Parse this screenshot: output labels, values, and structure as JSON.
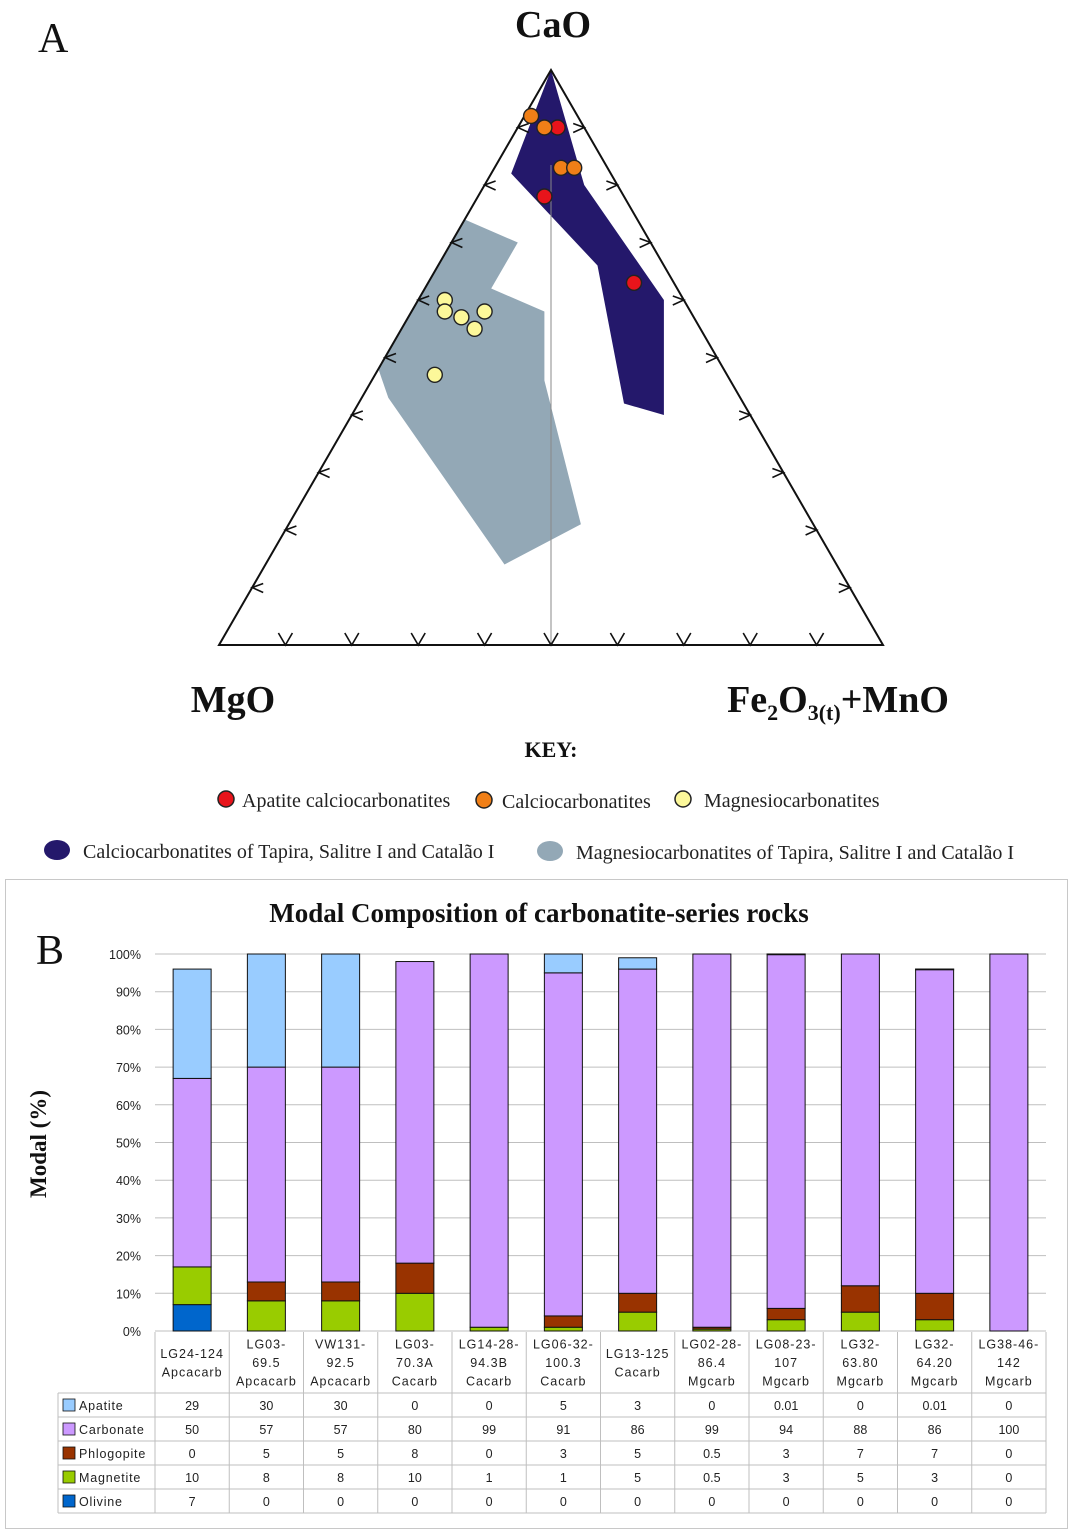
{
  "panel_a": {
    "panel_letter": "A",
    "apex_top": "CaO",
    "apex_left": "MgO",
    "apex_right": {
      "part1": "Fe",
      "sub1": "2",
      "part2": "O",
      "sub2": "3(t)",
      "part3": "+MnO"
    },
    "key_title": "KEY:",
    "legend_points": [
      {
        "label": "Apatite calciocarbonatites",
        "color": "#e8141b"
      },
      {
        "label": "Calciocarbonatites",
        "color": "#f07f17"
      },
      {
        "label": "Magnesiocarbonatites",
        "color": "#fcf89a"
      }
    ],
    "legend_fields": [
      {
        "label": "Calciocarbonatites of Tapira, Salitre I and Catalão I",
        "color": "#24186b"
      },
      {
        "label": "Magnesiocarbonatites of Tapira, Salitre I and Catalão I",
        "color": "#93a8b6"
      }
    ]
  },
  "chart_data": [
    {
      "type": "scatter",
      "subtype": "ternary",
      "axes": [
        "CaO",
        "MgO",
        "Fe2O3(t)+MnO"
      ],
      "grid": "ticks every 10%",
      "series": [
        {
          "name": "Apatite calciocarbonatites",
          "color": "#e8141b",
          "points": [
            {
              "CaO": 90,
              "MgO": 4,
              "Fe2O3(t)+MnO": 6
            },
            {
              "CaO": 78,
              "MgO": 12,
              "Fe2O3(t)+MnO": 10
            },
            {
              "CaO": 63,
              "MgO": 6,
              "Fe2O3(t)+MnO": 31
            }
          ]
        },
        {
          "name": "Calciocarbonatites",
          "color": "#f07f17",
          "points": [
            {
              "CaO": 92,
              "MgO": 7,
              "Fe2O3(t)+MnO": 1
            },
            {
              "CaO": 90,
              "MgO": 6,
              "Fe2O3(t)+MnO": 4
            },
            {
              "CaO": 83,
              "MgO": 7,
              "Fe2O3(t)+MnO": 10
            },
            {
              "CaO": 83,
              "MgO": 5,
              "Fe2O3(t)+MnO": 12
            }
          ]
        },
        {
          "name": "Magnesiocarbonatites",
          "color": "#fcf89a",
          "points": [
            {
              "CaO": 60,
              "MgO": 36,
              "Fe2O3(t)+MnO": 4
            },
            {
              "CaO": 58,
              "MgO": 37,
              "Fe2O3(t)+MnO": 5
            },
            {
              "CaO": 57,
              "MgO": 35,
              "Fe2O3(t)+MnO": 8
            },
            {
              "CaO": 58,
              "MgO": 31,
              "Fe2O3(t)+MnO": 11
            },
            {
              "CaO": 55,
              "MgO": 34,
              "Fe2O3(t)+MnO": 11
            },
            {
              "CaO": 47,
              "MgO": 44,
              "Fe2O3(t)+MnO": 9
            }
          ]
        }
      ],
      "fields": [
        {
          "name": "Calciocarbonatites of Tapira, Salitre I and Catalão I",
          "color": "#24186b",
          "outline": [
            {
              "CaO": 100,
              "MgO": 0,
              "Fe2O3(t)+MnO": 0
            },
            {
              "CaO": 80,
              "MgO": 5,
              "Fe2O3(t)+MnO": 15
            },
            {
              "CaO": 60,
              "MgO": 3,
              "Fe2O3(t)+MnO": 37
            },
            {
              "CaO": 40,
              "MgO": 13,
              "Fe2O3(t)+MnO": 47
            },
            {
              "CaO": 42,
              "MgO": 18,
              "Fe2O3(t)+MnO": 40
            },
            {
              "CaO": 66,
              "MgO": 10,
              "Fe2O3(t)+MnO": 24
            },
            {
              "CaO": 82,
              "MgO": 15,
              "Fe2O3(t)+MnO": 3
            }
          ]
        },
        {
          "name": "Magnesiocarbonatites of Tapira, Salitre I and Catalão I",
          "color": "#93a8b6",
          "outline": [
            {
              "CaO": 74,
              "MgO": 26,
              "Fe2O3(t)+MnO": 0
            },
            {
              "CaO": 48,
              "MgO": 52,
              "Fe2O3(t)+MnO": 0
            },
            {
              "CaO": 43,
              "MgO": 53,
              "Fe2O3(t)+MnO": 4
            },
            {
              "CaO": 14,
              "MgO": 50,
              "Fe2O3(t)+MnO": 36
            },
            {
              "CaO": 21,
              "MgO": 35,
              "Fe2O3(t)+MnO": 44
            },
            {
              "CaO": 46,
              "MgO": 28,
              "Fe2O3(t)+MnO": 26
            },
            {
              "CaO": 58,
              "MgO": 22,
              "Fe2O3(t)+MnO": 20
            },
            {
              "CaO": 62,
              "MgO": 28,
              "Fe2O3(t)+MnO": 10
            },
            {
              "CaO": 70,
              "MgO": 20,
              "Fe2O3(t)+MnO": 10
            }
          ]
        }
      ]
    },
    {
      "type": "bar",
      "stacked": true,
      "panel_letter": "B",
      "title": "Modal Composition of carbonatite-series rocks",
      "ylabel": "Modal (%)",
      "ylim": [
        0,
        100
      ],
      "yticks": [
        "0%",
        "10%",
        "20%",
        "30%",
        "40%",
        "50%",
        "60%",
        "70%",
        "80%",
        "90%",
        "100%"
      ],
      "grid": true,
      "categories": [
        [
          "LG24-124",
          "Apcacarb"
        ],
        [
          "LG03-",
          "69.5",
          "Apcacarb"
        ],
        [
          "VW131-",
          "92.5",
          "Apcacarb"
        ],
        [
          "LG03-",
          "70.3A",
          "Cacarb"
        ],
        [
          "LG14-28-",
          "94.3B",
          "Cacarb"
        ],
        [
          "LG06-32-",
          "100.3",
          "Cacarb"
        ],
        [
          "LG13-125",
          "Cacarb"
        ],
        [
          "LG02-28-",
          "86.4",
          "Mgcarb"
        ],
        [
          "LG08-23-",
          "107",
          "Mgcarb"
        ],
        [
          "LG32-",
          "63.80",
          "Mgcarb"
        ],
        [
          "LG32-",
          "64.20",
          "Mgcarb"
        ],
        [
          "LG38-46-",
          "142",
          "Mgcarb"
        ]
      ],
      "series": [
        {
          "name": "Apatite",
          "color": "#99ccff",
          "values": [
            29,
            30,
            30,
            0,
            0,
            5,
            3,
            0,
            0.01,
            0,
            0.01,
            0
          ],
          "labels": [
            "29",
            "30",
            "30",
            "0",
            "0",
            "5",
            "3",
            "0",
            "0.01",
            "0",
            "0.01",
            "0"
          ]
        },
        {
          "name": "Carbonate",
          "color": "#cc99ff",
          "values": [
            50,
            57,
            57,
            80,
            99,
            91,
            86,
            99,
            94,
            88,
            86,
            100
          ],
          "labels": [
            "50",
            "57",
            "57",
            "80",
            "99",
            "91",
            "86",
            "99",
            "94",
            "88",
            "86",
            "100"
          ]
        },
        {
          "name": "Phlogopite",
          "color": "#993300",
          "values": [
            0,
            5,
            5,
            8,
            0,
            3,
            5,
            0.5,
            3,
            7,
            7,
            0
          ],
          "labels": [
            "0",
            "5",
            "5",
            "8",
            "0",
            "3",
            "5",
            "0.5",
            "3",
            "7",
            "7",
            "0"
          ]
        },
        {
          "name": "Magnetite",
          "color": "#99cc00",
          "values": [
            10,
            8,
            8,
            10,
            1,
            1,
            5,
            0.5,
            3,
            5,
            3,
            0
          ],
          "labels": [
            "10",
            "8",
            "8",
            "10",
            "1",
            "1",
            "5",
            "0.5",
            "3",
            "5",
            "3",
            "0"
          ]
        },
        {
          "name": "Olivine",
          "color": "#0066cc",
          "values": [
            7,
            0,
            0,
            0,
            0,
            0,
            0,
            0,
            0,
            0,
            0,
            0
          ],
          "labels": [
            "7",
            "0",
            "0",
            "0",
            "0",
            "0",
            "0",
            "0",
            "0",
            "0",
            "0",
            "0"
          ]
        }
      ]
    }
  ]
}
